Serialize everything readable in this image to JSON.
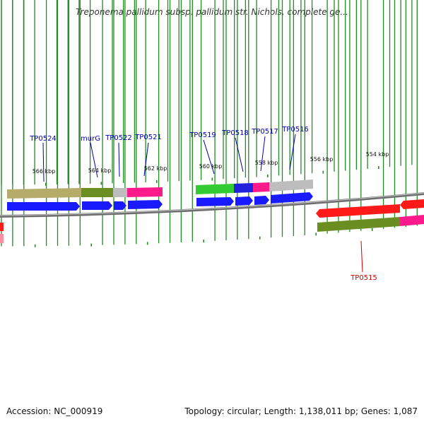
{
  "title": "Treponema pallidum subsp. pallidum str. Nichols, complete ge...",
  "footer": {
    "accession": "Accession: NC_000919",
    "summary": "Topology: circular; Length: 1,138,011 bp; Genes: 1,087"
  },
  "colors": {
    "forward_gene": "#1a1aff",
    "reverse_gene": "#ff1a1a",
    "forward_label": "#0000aa",
    "reverse_label": "#cc0000",
    "tick": "#228b22",
    "backbone": "#888888",
    "cog_khaki": "#b5ac6a",
    "cog_olive": "#6b8e23",
    "cog_gray": "#bdbdbd",
    "cog_pink": "#ff1a8c",
    "cog_green": "#33cc33",
    "cog_blue": "#2222dd"
  },
  "scale_labels": [
    "566 kbp",
    "564 kbp",
    "562 kbp",
    "560 kbp",
    "558 kbp",
    "556 kbp",
    "554 kbp"
  ],
  "genes": [
    {
      "name": "TP0524",
      "strand": "forward"
    },
    {
      "name": "murG",
      "strand": "forward"
    },
    {
      "name": "TP0522",
      "strand": "forward"
    },
    {
      "name": "TP0521",
      "strand": "forward"
    },
    {
      "name": "TP0519",
      "strand": "forward"
    },
    {
      "name": "TP0518",
      "strand": "forward"
    },
    {
      "name": "TP0517",
      "strand": "forward"
    },
    {
      "name": "TP0516",
      "strand": "forward"
    },
    {
      "name": "TP0515",
      "strand": "reverse"
    }
  ]
}
